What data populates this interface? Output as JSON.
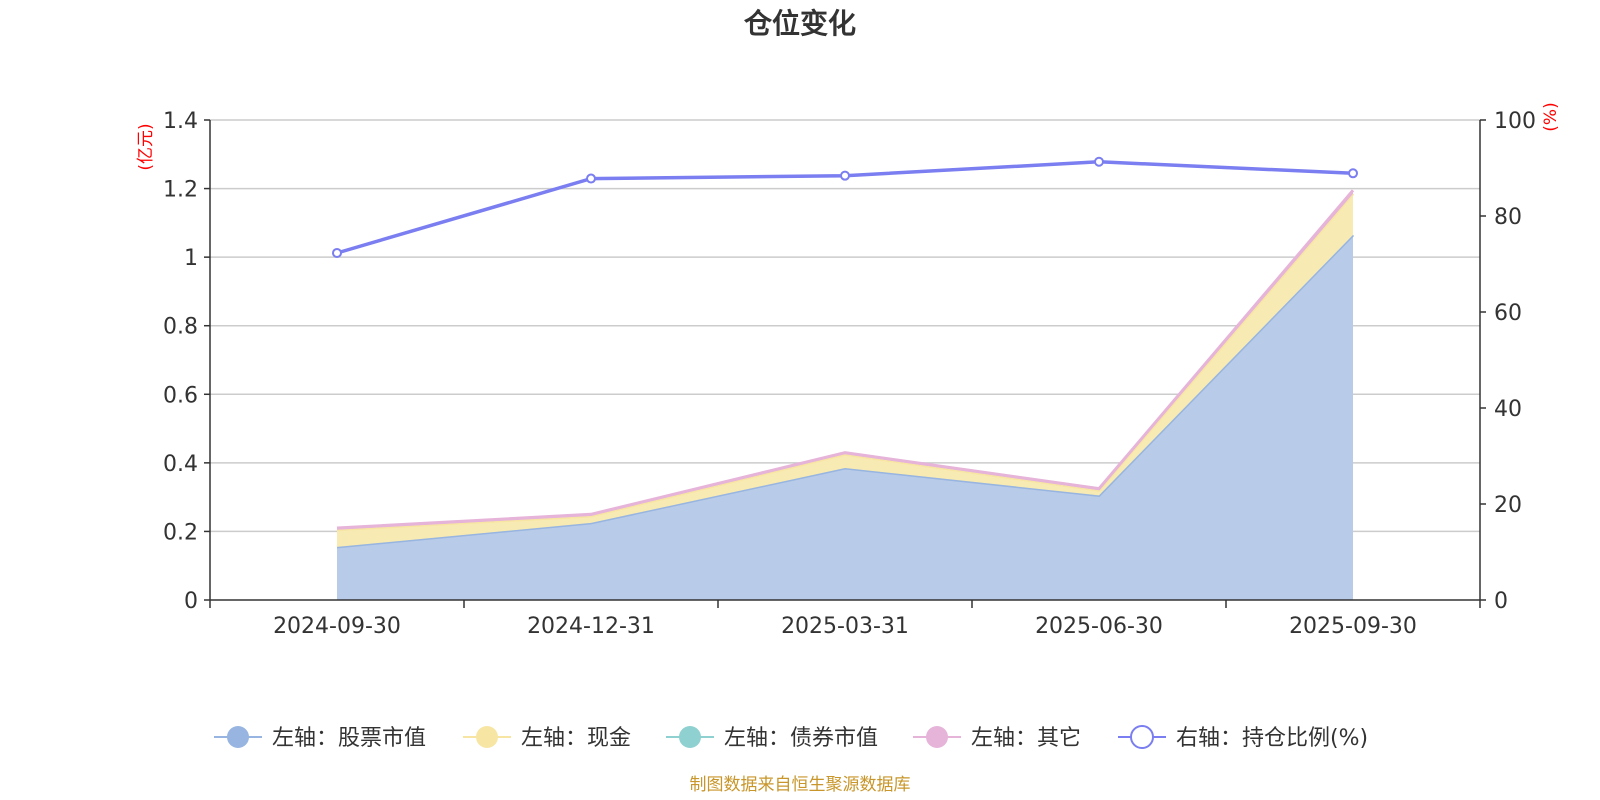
{
  "chart_data": {
    "type": "area",
    "title": "仓位变化",
    "source": "制图数据来自恒生聚源数据库",
    "x": [
      "2024-09-30",
      "2024-12-31",
      "2025-03-31",
      "2025-06-30",
      "2025-09-30"
    ],
    "left_axis": {
      "unit": "(亿元)",
      "ylim": [
        0,
        1.4
      ],
      "ticks": [
        "0",
        "0.2",
        "0.4",
        "0.6",
        "0.8",
        "1",
        "1.2",
        "1.4"
      ]
    },
    "right_axis": {
      "unit": "(%)",
      "ylim": [
        0,
        100
      ],
      "ticks": [
        "0",
        "20",
        "40",
        "60",
        "80",
        "100"
      ]
    },
    "grid": true,
    "legend": "bottom",
    "series": [
      {
        "name": "左轴：股票市值",
        "axis": "left",
        "stack": true,
        "values": [
          0.155,
          0.225,
          0.385,
          0.305,
          1.065
        ],
        "color": "#97b5e0",
        "fill": "#b8cbe9"
      },
      {
        "name": "左轴：现金",
        "axis": "left",
        "stack": true,
        "values": [
          0.05,
          0.02,
          0.04,
          0.015,
          0.12
        ],
        "color": "#f7e6a3",
        "fill": "#f8eab3"
      },
      {
        "name": "左轴：债券市值",
        "axis": "left",
        "stack": true,
        "values": [
          0,
          0,
          0,
          0,
          0
        ],
        "color": "#8fd0d0",
        "fill": "#8fd0d0"
      },
      {
        "name": "左轴：其它",
        "axis": "left",
        "stack": true,
        "values": [
          0.005,
          0.005,
          0.005,
          0.005,
          0.01
        ],
        "color": "#e6b3d9",
        "fill": "#e6b3d9"
      },
      {
        "name": "右轴：持仓比例(%)",
        "axis": "right",
        "type": "line",
        "values": [
          72.3,
          87.8,
          88.4,
          91.3,
          88.9
        ],
        "color": "#7a7ef0"
      }
    ]
  }
}
